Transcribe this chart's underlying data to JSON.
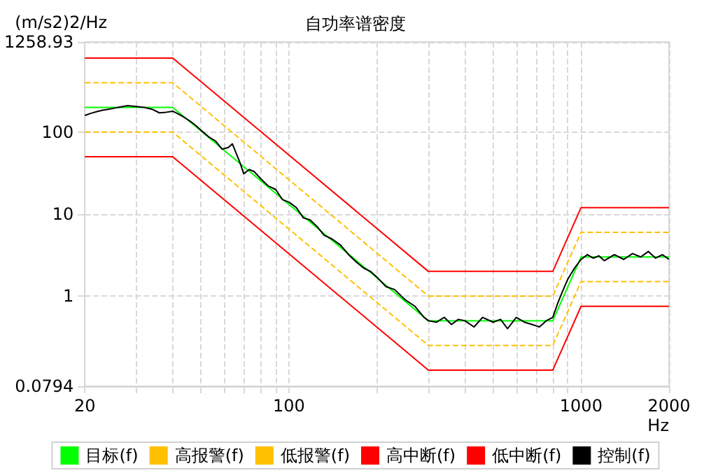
{
  "chart_data": {
    "type": "line",
    "title": "自功率谱密度",
    "xlabel": "Hz",
    "ylabel": "(m/s2)2/Hz",
    "log": "xy",
    "grid": true,
    "legend": "bottom",
    "marker": "none",
    "xlim": [
      20,
      2000
    ],
    "ylim": [
      0.0794,
      1258.93
    ],
    "xticks": [
      20,
      {
        "value": 30,
        "label": null
      },
      {
        "value": 40,
        "label": null
      },
      {
        "value": 50,
        "label": null
      },
      {
        "value": 60,
        "label": null
      },
      {
        "value": 70,
        "label": null
      },
      {
        "value": 80,
        "label": null
      },
      {
        "value": 90,
        "label": null
      },
      100,
      {
        "value": 200,
        "label": null
      },
      {
        "value": 300,
        "label": null
      },
      {
        "value": 400,
        "label": null
      },
      {
        "value": 500,
        "label": null
      },
      {
        "value": 600,
        "label": null
      },
      {
        "value": 700,
        "label": null
      },
      {
        "value": 800,
        "label": null
      },
      {
        "value": 900,
        "label": null
      },
      1000,
      2000
    ],
    "yticks": [
      0.0794,
      1,
      10,
      100,
      1258.93
    ],
    "series": [
      {
        "name": "目标(f)",
        "color": "#00ff00",
        "x": [
          20,
          40,
          300,
          800,
          1000,
          2000
        ],
        "values": [
          200,
          200,
          0.5,
          0.5,
          3,
          3
        ]
      },
      {
        "name": "高报警(f)",
        "color": "#ffc000",
        "line_style": "dashed",
        "x": [
          20,
          40,
          300,
          800,
          1000,
          2000
        ],
        "values": [
          400,
          400,
          1,
          1,
          6,
          6
        ]
      },
      {
        "name": "低报警(f)",
        "color": "#ffc000",
        "line_style": "dashed",
        "x": [
          20,
          40,
          300,
          800,
          1000,
          2000
        ],
        "values": [
          100,
          100,
          0.25,
          0.25,
          1.5,
          1.5
        ]
      },
      {
        "name": "高中断(f)",
        "color": "#ff0000",
        "x": [
          20,
          40,
          300,
          800,
          1000,
          2000
        ],
        "values": [
          800,
          800,
          2,
          2,
          12,
          12
        ]
      },
      {
        "name": "低中断(f)",
        "color": "#ff0000",
        "x": [
          20,
          40,
          300,
          800,
          1000,
          2000
        ],
        "values": [
          50,
          50,
          0.125,
          0.125,
          0.75,
          0.75
        ]
      },
      {
        "name": "控制(f)",
        "color": "#000000",
        "x": [
          20,
          21,
          22,
          23,
          24,
          25,
          26,
          28,
          30,
          32,
          34,
          36,
          38,
          40,
          42,
          44,
          46,
          48,
          50,
          53,
          56,
          59,
          62,
          64,
          66,
          68,
          70,
          73,
          76,
          80,
          85,
          90,
          95,
          100,
          106,
          112,
          118,
          125,
          132,
          140,
          150,
          160,
          170,
          180,
          190,
          200,
          215,
          230,
          250,
          270,
          290,
          300,
          320,
          340,
          360,
          380,
          400,
          430,
          460,
          500,
          530,
          560,
          600,
          640,
          680,
          720,
          760,
          800,
          830,
          860,
          900,
          950,
          1000,
          1050,
          1100,
          1150,
          1200,
          1300,
          1400,
          1500,
          1600,
          1700,
          1800,
          1900,
          2000
        ],
        "values": [
          160,
          170,
          178,
          185,
          190,
          195,
          200,
          210,
          205,
          200,
          190,
          172,
          175,
          180,
          165,
          150,
          135,
          120,
          105,
          88,
          78,
          62,
          65,
          72,
          55,
          42,
          31,
          35,
          33,
          27,
          22,
          20,
          15,
          14,
          12,
          9,
          8.5,
          7,
          5.5,
          5,
          4.2,
          3.2,
          2.6,
          2.2,
          2,
          1.7,
          1.3,
          1.2,
          0.9,
          0.75,
          0.55,
          0.5,
          0.48,
          0.55,
          0.45,
          0.52,
          0.5,
          0.42,
          0.55,
          0.48,
          0.52,
          0.4,
          0.55,
          0.48,
          0.45,
          0.42,
          0.5,
          0.55,
          0.8,
          1.1,
          1.6,
          2.2,
          2.8,
          3.2,
          2.9,
          3.1,
          2.7,
          3.2,
          2.8,
          3.3,
          3,
          3.5,
          2.9,
          3.2,
          2.8
        ]
      }
    ]
  }
}
